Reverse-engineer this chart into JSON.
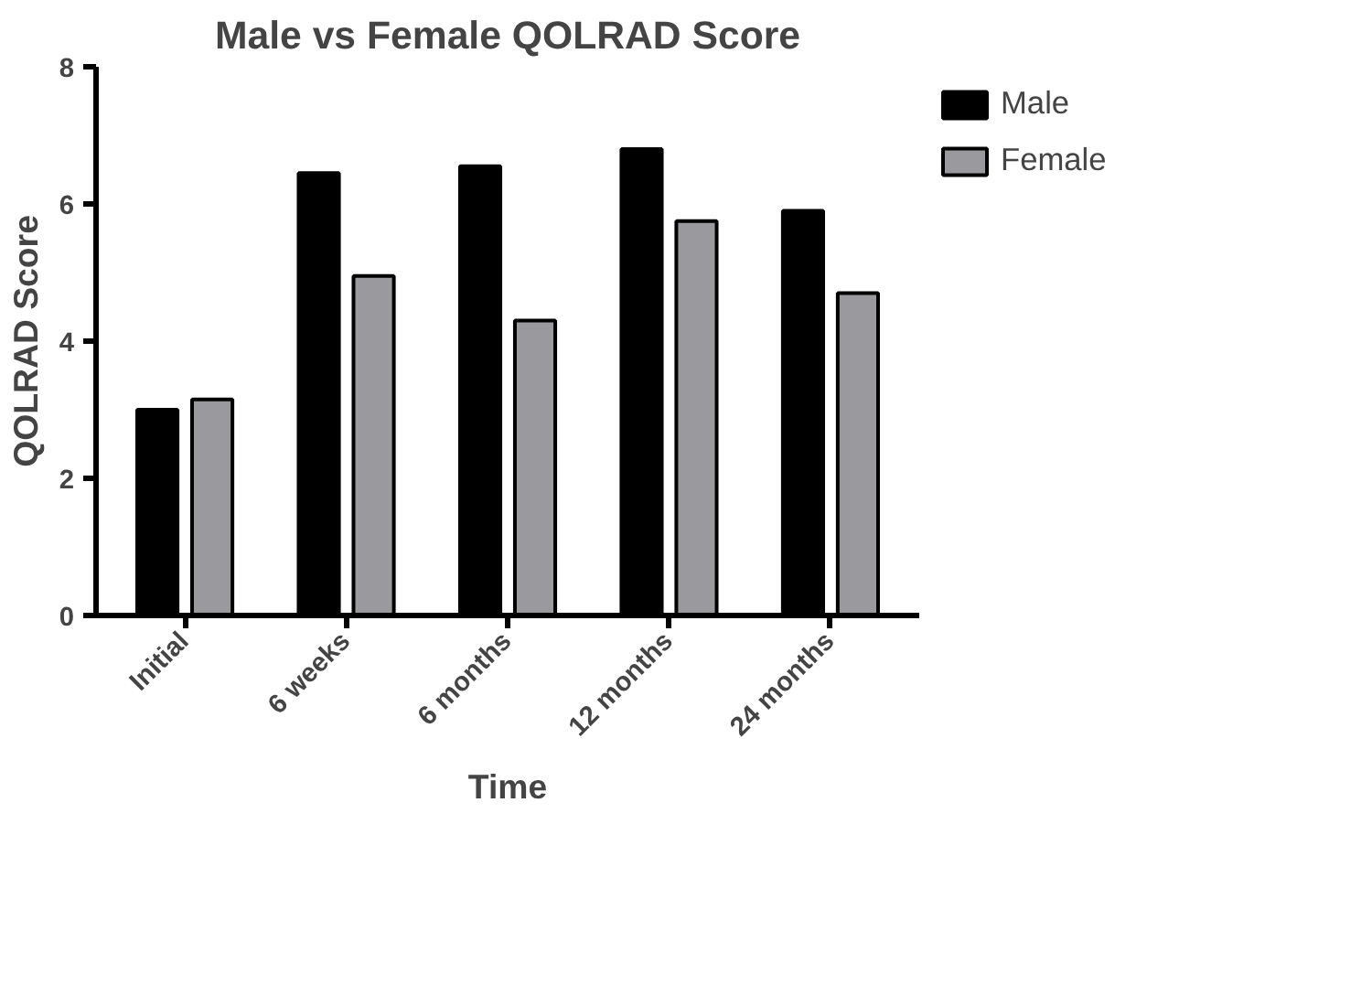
{
  "chart_data": {
    "type": "bar",
    "title": "Male vs Female QOLRAD Score",
    "xlabel": "Time",
    "ylabel": "QOLRAD Score",
    "categories": [
      "Initial",
      "6 weeks",
      "6 months",
      "12 months",
      "24 months"
    ],
    "series": [
      {
        "name": "Male",
        "color": "#000000",
        "values": [
          3.0,
          6.45,
          6.55,
          6.8,
          5.9
        ]
      },
      {
        "name": "Female",
        "color": "#9a9a9e",
        "values": [
          3.15,
          4.95,
          4.3,
          5.75,
          4.7
        ]
      }
    ],
    "ylim": [
      0,
      8
    ],
    "yticks": [
      0,
      2,
      4,
      6,
      8
    ],
    "grid": false,
    "legend": "top right"
  }
}
